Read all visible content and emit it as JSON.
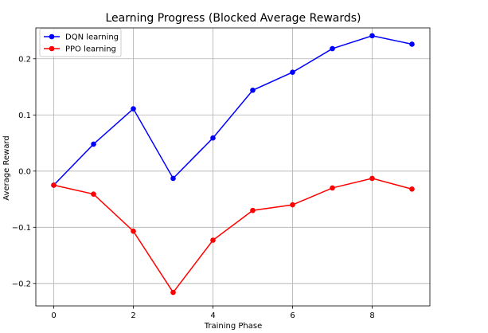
{
  "chart_data": {
    "type": "line",
    "title": "Learning Progress (Blocked Average Rewards)",
    "xlabel": "Training Phase",
    "ylabel": "Average Reward",
    "x": [
      0,
      1,
      2,
      3,
      4,
      5,
      6,
      7,
      8,
      9
    ],
    "xticks": [
      0,
      2,
      4,
      6,
      8
    ],
    "xtick_labels": [
      "0",
      "2",
      "4",
      "6",
      "8"
    ],
    "yticks": [
      -0.2,
      -0.1,
      0.0,
      0.1,
      0.2
    ],
    "ytick_labels": [
      "−0.2",
      "−0.1",
      "0.0",
      "0.1",
      "0.2"
    ],
    "xlim": [
      -0.45,
      9.45
    ],
    "ylim": [
      -0.24,
      0.255
    ],
    "grid": true,
    "legend_position": "top-left",
    "series": [
      {
        "name": "DQN learning",
        "color": "#0000ff",
        "values": [
          -0.025,
          0.048,
          0.111,
          -0.013,
          0.059,
          0.144,
          0.176,
          0.218,
          0.241,
          0.226
        ]
      },
      {
        "name": "PPO learning",
        "color": "#ff0000",
        "values": [
          -0.025,
          -0.041,
          -0.107,
          -0.216,
          -0.123,
          -0.07,
          -0.06,
          -0.03,
          -0.013,
          -0.032
        ]
      }
    ]
  }
}
